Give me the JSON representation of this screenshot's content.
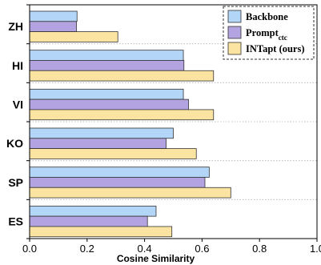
{
  "chart_data": {
    "type": "bar",
    "orientation": "horizontal",
    "categories": [
      "ZH",
      "HI",
      "VI",
      "KO",
      "SP",
      "ES"
    ],
    "series": [
      {
        "name": "Backbone",
        "name_sub": "",
        "color": "#b3d5f7",
        "values": [
          0.165,
          0.535,
          0.535,
          0.5,
          0.625,
          0.44
        ]
      },
      {
        "name": "Prompt",
        "name_sub": "ctc",
        "color": "#b3a3e0",
        "values": [
          0.163,
          0.537,
          0.553,
          0.475,
          0.61,
          0.41
        ]
      },
      {
        "name": "INTapt (ours)",
        "name_sub": "",
        "color": "#fbe4a1",
        "values": [
          0.307,
          0.64,
          0.64,
          0.58,
          0.7,
          0.495
        ]
      }
    ],
    "xlabel": "Cosine Similarity",
    "xlim": [
      0.0,
      1.0
    ],
    "xticks": [
      "0.0",
      "0.2",
      "0.4",
      "0.6",
      "0.8",
      "1.0"
    ],
    "grid": "horizontal-dotted-separators",
    "legend_position": "top-right"
  }
}
